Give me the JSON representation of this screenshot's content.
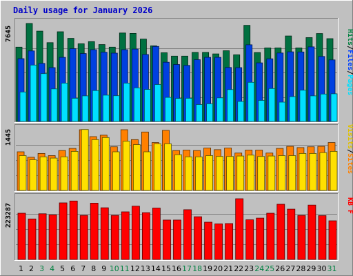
{
  "chart_data": {
    "type": "bar",
    "title": "Daily usage for January 2026",
    "x": [
      "1",
      "2",
      "3",
      "4",
      "5",
      "6",
      "7",
      "8",
      "9",
      "10",
      "11",
      "12",
      "13",
      "14",
      "15",
      "16",
      "17",
      "18",
      "19",
      "20",
      "21",
      "22",
      "23",
      "24",
      "25",
      "26",
      "27",
      "28",
      "29",
      "30",
      "31"
    ],
    "weekend_days": [
      "3",
      "4",
      "10",
      "11",
      "17",
      "18",
      "24",
      "25",
      "31"
    ],
    "panels": [
      {
        "id": "hits-files-pages",
        "ymax_label": "7645",
        "ymax": 7645,
        "right_labels": [
          {
            "text": "Hits",
            "color": "#008040"
          },
          {
            "text": "/",
            "color": "#000000"
          },
          {
            "text": "Files",
            "color": "#0040ff"
          },
          {
            "text": "/",
            "color": "#000000"
          },
          {
            "text": "Pages",
            "color": "#00e0ff"
          }
        ],
        "series": [
          {
            "name": "Hits",
            "color": "#007040",
            "values": [
              5800,
              7645,
              7050,
              6150,
              7000,
              6480,
              6060,
              6230,
              6000,
              5800,
              6900,
              6870,
              6430,
              5900,
              5360,
              5100,
              5100,
              5390,
              5390,
              5270,
              5520,
              5200,
              7500,
              5380,
              5740,
              5740,
              6670,
              5740,
              6540,
              6860,
              6460
            ]
          },
          {
            "name": "Files",
            "color": "#0040e0",
            "values": [
              4900,
              5500,
              4530,
              4200,
              5000,
              5680,
              5300,
              5600,
              5400,
              5330,
              5600,
              5650,
              5220,
              5850,
              4620,
              4440,
              4370,
              4820,
              5000,
              5000,
              4210,
              4200,
              5980,
              4570,
              4890,
              5340,
              5430,
              5420,
              5820,
              5070,
              4800
            ]
          },
          {
            "name": "Pages",
            "color": "#00e0ff",
            "values": [
              2300,
              4400,
              3730,
              2540,
              2990,
              1810,
              2000,
              2410,
              2050,
              2010,
              2990,
              2620,
              2500,
              2880,
              1880,
              1800,
              1810,
              1320,
              1380,
              1840,
              2490,
              1560,
              3050,
              1640,
              2570,
              1510,
              1940,
              2440,
              2000,
              2140,
              2160
            ]
          }
        ]
      },
      {
        "id": "visits-sites",
        "ymax_label": "1445",
        "ymax": 1445,
        "right_labels": [
          {
            "text": "Visits",
            "color": "#e0c000"
          },
          {
            "text": "/",
            "color": "#000000"
          },
          {
            "text": "Sites",
            "color": "#ff8000"
          }
        ],
        "series": [
          {
            "name": "Sites",
            "color": "#ff8000",
            "values": [
              920,
              790,
              880,
              830,
              950,
              1000,
              1445,
              1280,
              1315,
              1040,
              1445,
              1210,
              1390,
              1140,
              1430,
              950,
              960,
              950,
              1010,
              970,
              1010,
              890,
              960,
              960,
              890,
              1000,
              1050,
              1020,
              1040,
              1050,
              1140
            ]
          },
          {
            "name": "Visits",
            "color": "#ffe000",
            "values": [
              830,
              730,
              800,
              770,
              800,
              930,
              1450,
              1210,
              1260,
              920,
              1170,
              1090,
              920,
              1110,
              1110,
              850,
              800,
              800,
              830,
              810,
              810,
              820,
              840,
              810,
              820,
              830,
              830,
              880,
              880,
              900,
              930
            ]
          }
        ]
      },
      {
        "id": "kbf",
        "ymax_label": "223287",
        "ymax": 223287,
        "right_labels": [
          {
            "text": "KB F",
            "color": "#ff0000"
          }
        ],
        "series": [
          {
            "name": "KB F",
            "color": "#ff0000",
            "values": [
              170000,
              149000,
              168000,
              164000,
              208000,
              215000,
              162000,
              207000,
              190000,
              162000,
              175000,
              196000,
              172000,
              189000,
              145000,
              145000,
              183000,
              157000,
              137000,
              131000,
              132000,
              223287,
              146000,
              152000,
              170000,
              203000,
              185000,
              162000,
              200000,
              161000,
              142000
            ]
          }
        ]
      }
    ]
  }
}
